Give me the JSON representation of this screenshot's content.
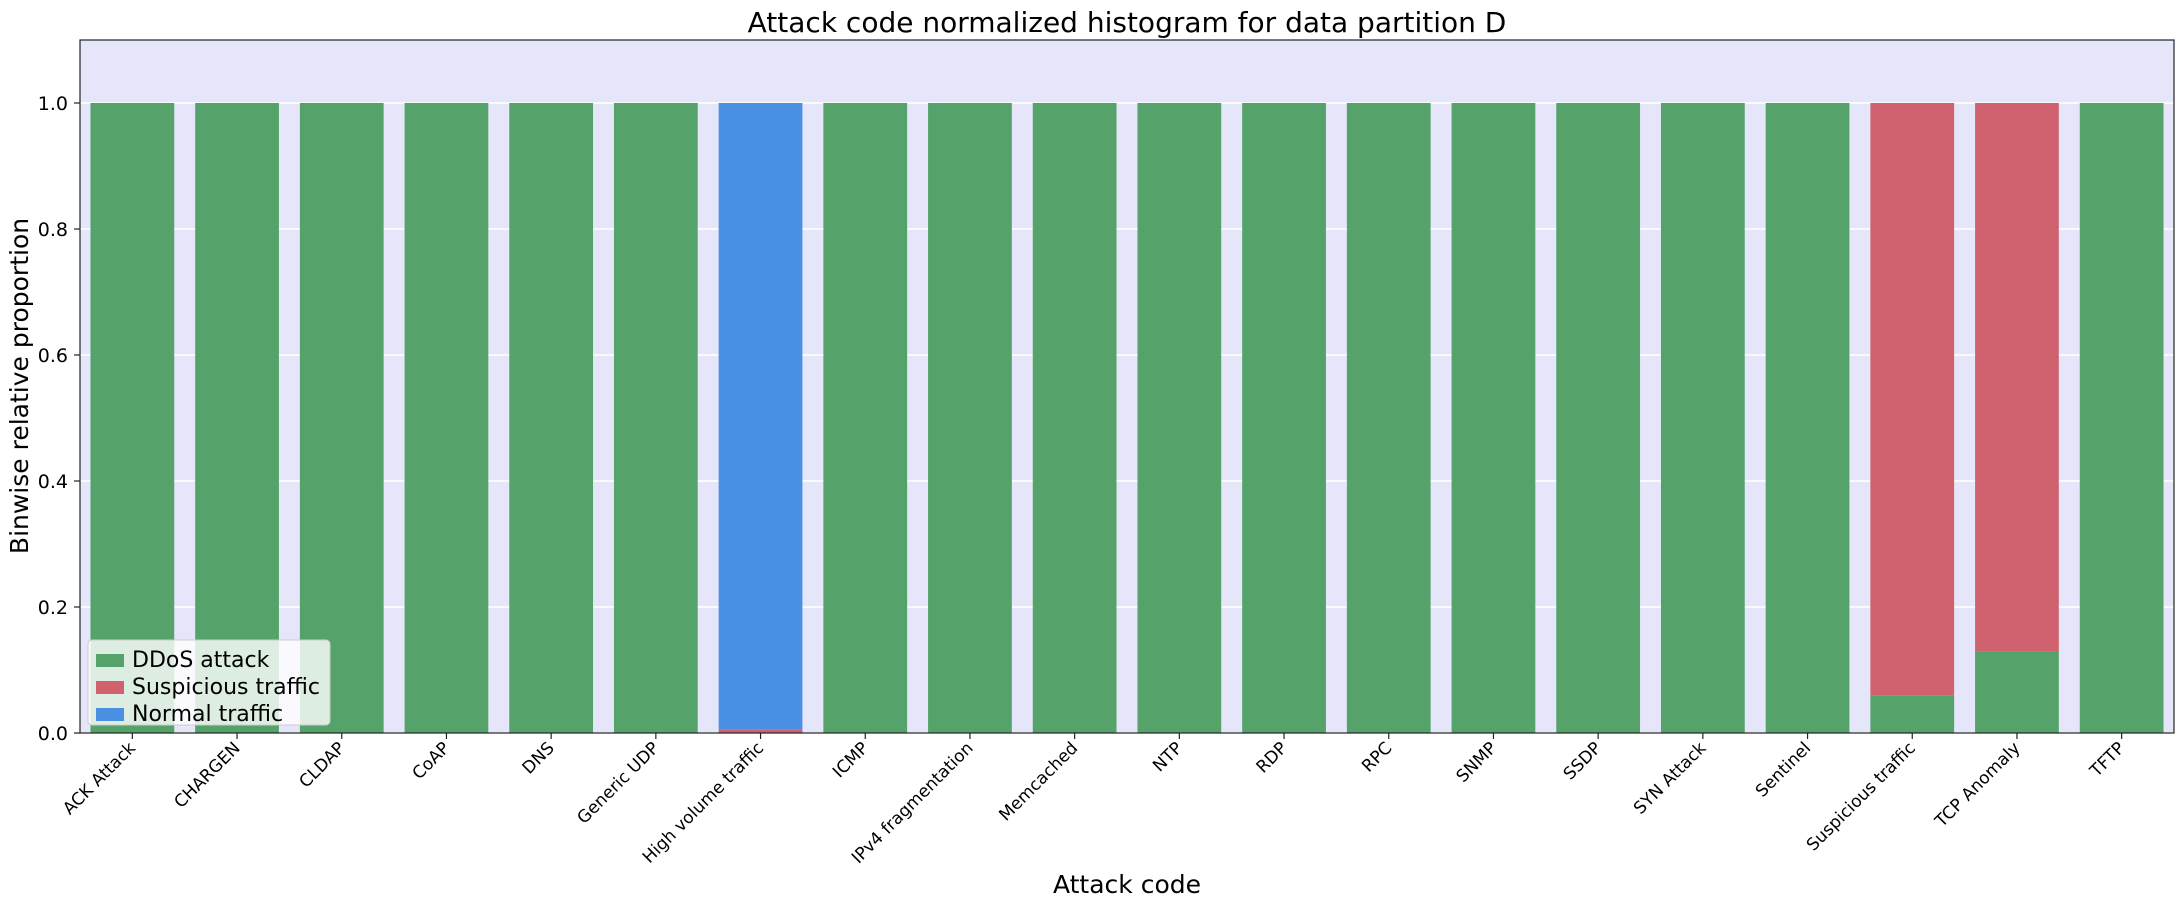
{
  "chart_data": {
    "type": "bar",
    "stacked": true,
    "title": "Attack code normalized histogram for data partition D",
    "xlabel": "Attack code",
    "ylabel": "Binwise relative proportion",
    "ylim": [
      0,
      1.1
    ],
    "yticks": [
      0.0,
      0.2,
      0.4,
      0.6,
      0.8,
      1.0
    ],
    "ytick_labels": [
      "0.0",
      "0.2",
      "0.4",
      "0.6",
      "0.8",
      "1.0"
    ],
    "grid": true,
    "background_color": "#e6e6fa",
    "legend_position": "lower-left",
    "categories": [
      "ACK Attack",
      "CHARGEN",
      "CLDAP",
      "CoAP",
      "DNS",
      "Generic UDP",
      "High volume traffic",
      "ICMP",
      "IPv4 fragmentation",
      "Memcached",
      "NTP",
      "RDP",
      "RPC",
      "SNMP",
      "SSDP",
      "SYN Attack",
      "Sentinel",
      "Suspicious traffic",
      "TCP Anomaly",
      "TFTP"
    ],
    "series": [
      {
        "name": "DDoS attack",
        "color": "#55a36b",
        "values": [
          1,
          1,
          1,
          1,
          1,
          1,
          0,
          1,
          1,
          1,
          1,
          1,
          1,
          1,
          1,
          1,
          1,
          0.06,
          0.13,
          1
        ]
      },
      {
        "name": "Suspicious traffic",
        "color": "#d0616f",
        "values": [
          0,
          0,
          0,
          0,
          0,
          0,
          0.005,
          0,
          0,
          0,
          0,
          0,
          0,
          0,
          0,
          0,
          0,
          0.94,
          0.87,
          0
        ]
      },
      {
        "name": "Normal traffic",
        "color": "#4a90e2",
        "values": [
          0,
          0,
          0,
          0,
          0,
          0,
          0.995,
          0,
          0,
          0,
          0,
          0,
          0,
          0,
          0,
          0,
          0,
          0,
          0,
          0
        ]
      }
    ]
  }
}
